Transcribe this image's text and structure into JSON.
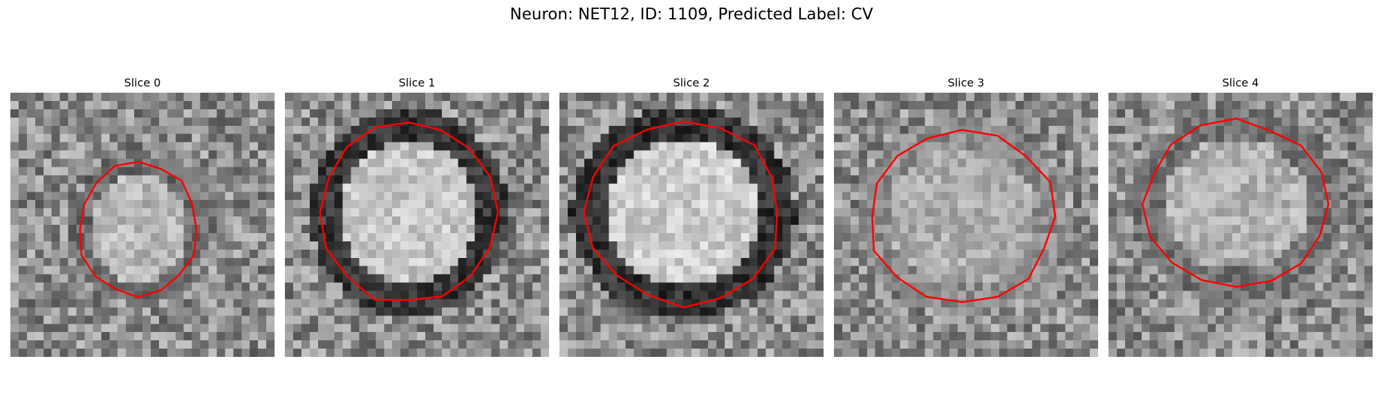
{
  "figure": {
    "title": "Neuron: NET12, ID: 1109, Predicted Label: CV"
  },
  "contour_color": "#ff0000",
  "panels": [
    {
      "title": "Slice 0",
      "seed": 11,
      "ring": 0.42,
      "bright_center": 0.72
    },
    {
      "title": "Slice 1",
      "seed": 23,
      "ring": 0.22,
      "bright_center": 0.78
    },
    {
      "title": "Slice 2",
      "seed": 37,
      "ring": 0.2,
      "bright_center": 0.8
    },
    {
      "title": "Slice 3",
      "seed": 53,
      "ring": 0.55,
      "bright_center": 0.68
    },
    {
      "title": "Slice 4",
      "seed": 71,
      "ring": 0.45,
      "bright_center": 0.7
    }
  ]
}
